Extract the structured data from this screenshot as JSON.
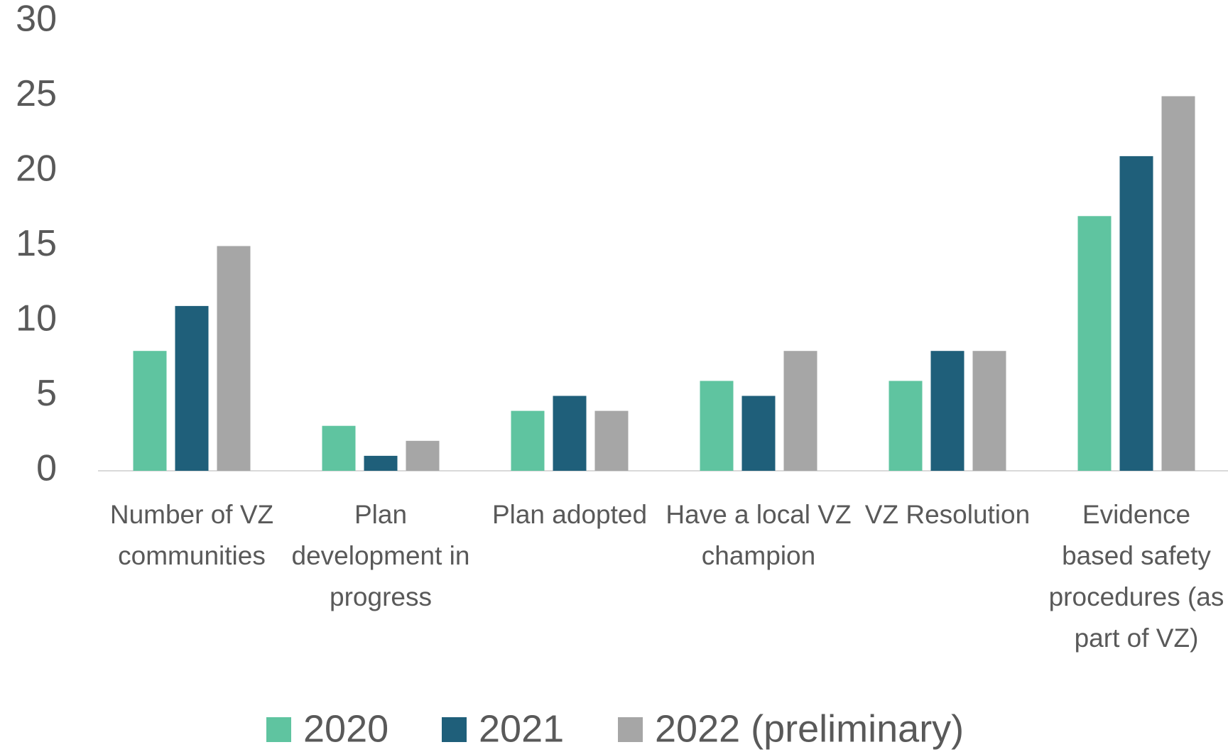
{
  "chart_data": {
    "type": "bar",
    "categories": [
      "Number of VZ communities",
      "Plan development in progress",
      "Plan adopted",
      "Have a local VZ champion",
      "VZ Resolution",
      "Evidence based safety procedures (as part of VZ)"
    ],
    "series": [
      {
        "name": "2020",
        "color": "#5fc4a0",
        "values": [
          8,
          3,
          4,
          6,
          6,
          17
        ]
      },
      {
        "name": "2021",
        "color": "#1f5f7a",
        "values": [
          11,
          1,
          5,
          5,
          8,
          21
        ]
      },
      {
        "name": "2022 (preliminary)",
        "color": "#a6a6a6",
        "values": [
          15,
          2,
          4,
          8,
          8,
          25
        ]
      }
    ],
    "ylim": [
      0,
      30
    ],
    "yticks": [
      0,
      5,
      10,
      15,
      20,
      25,
      30
    ],
    "grid": false,
    "legend": "bottom"
  }
}
